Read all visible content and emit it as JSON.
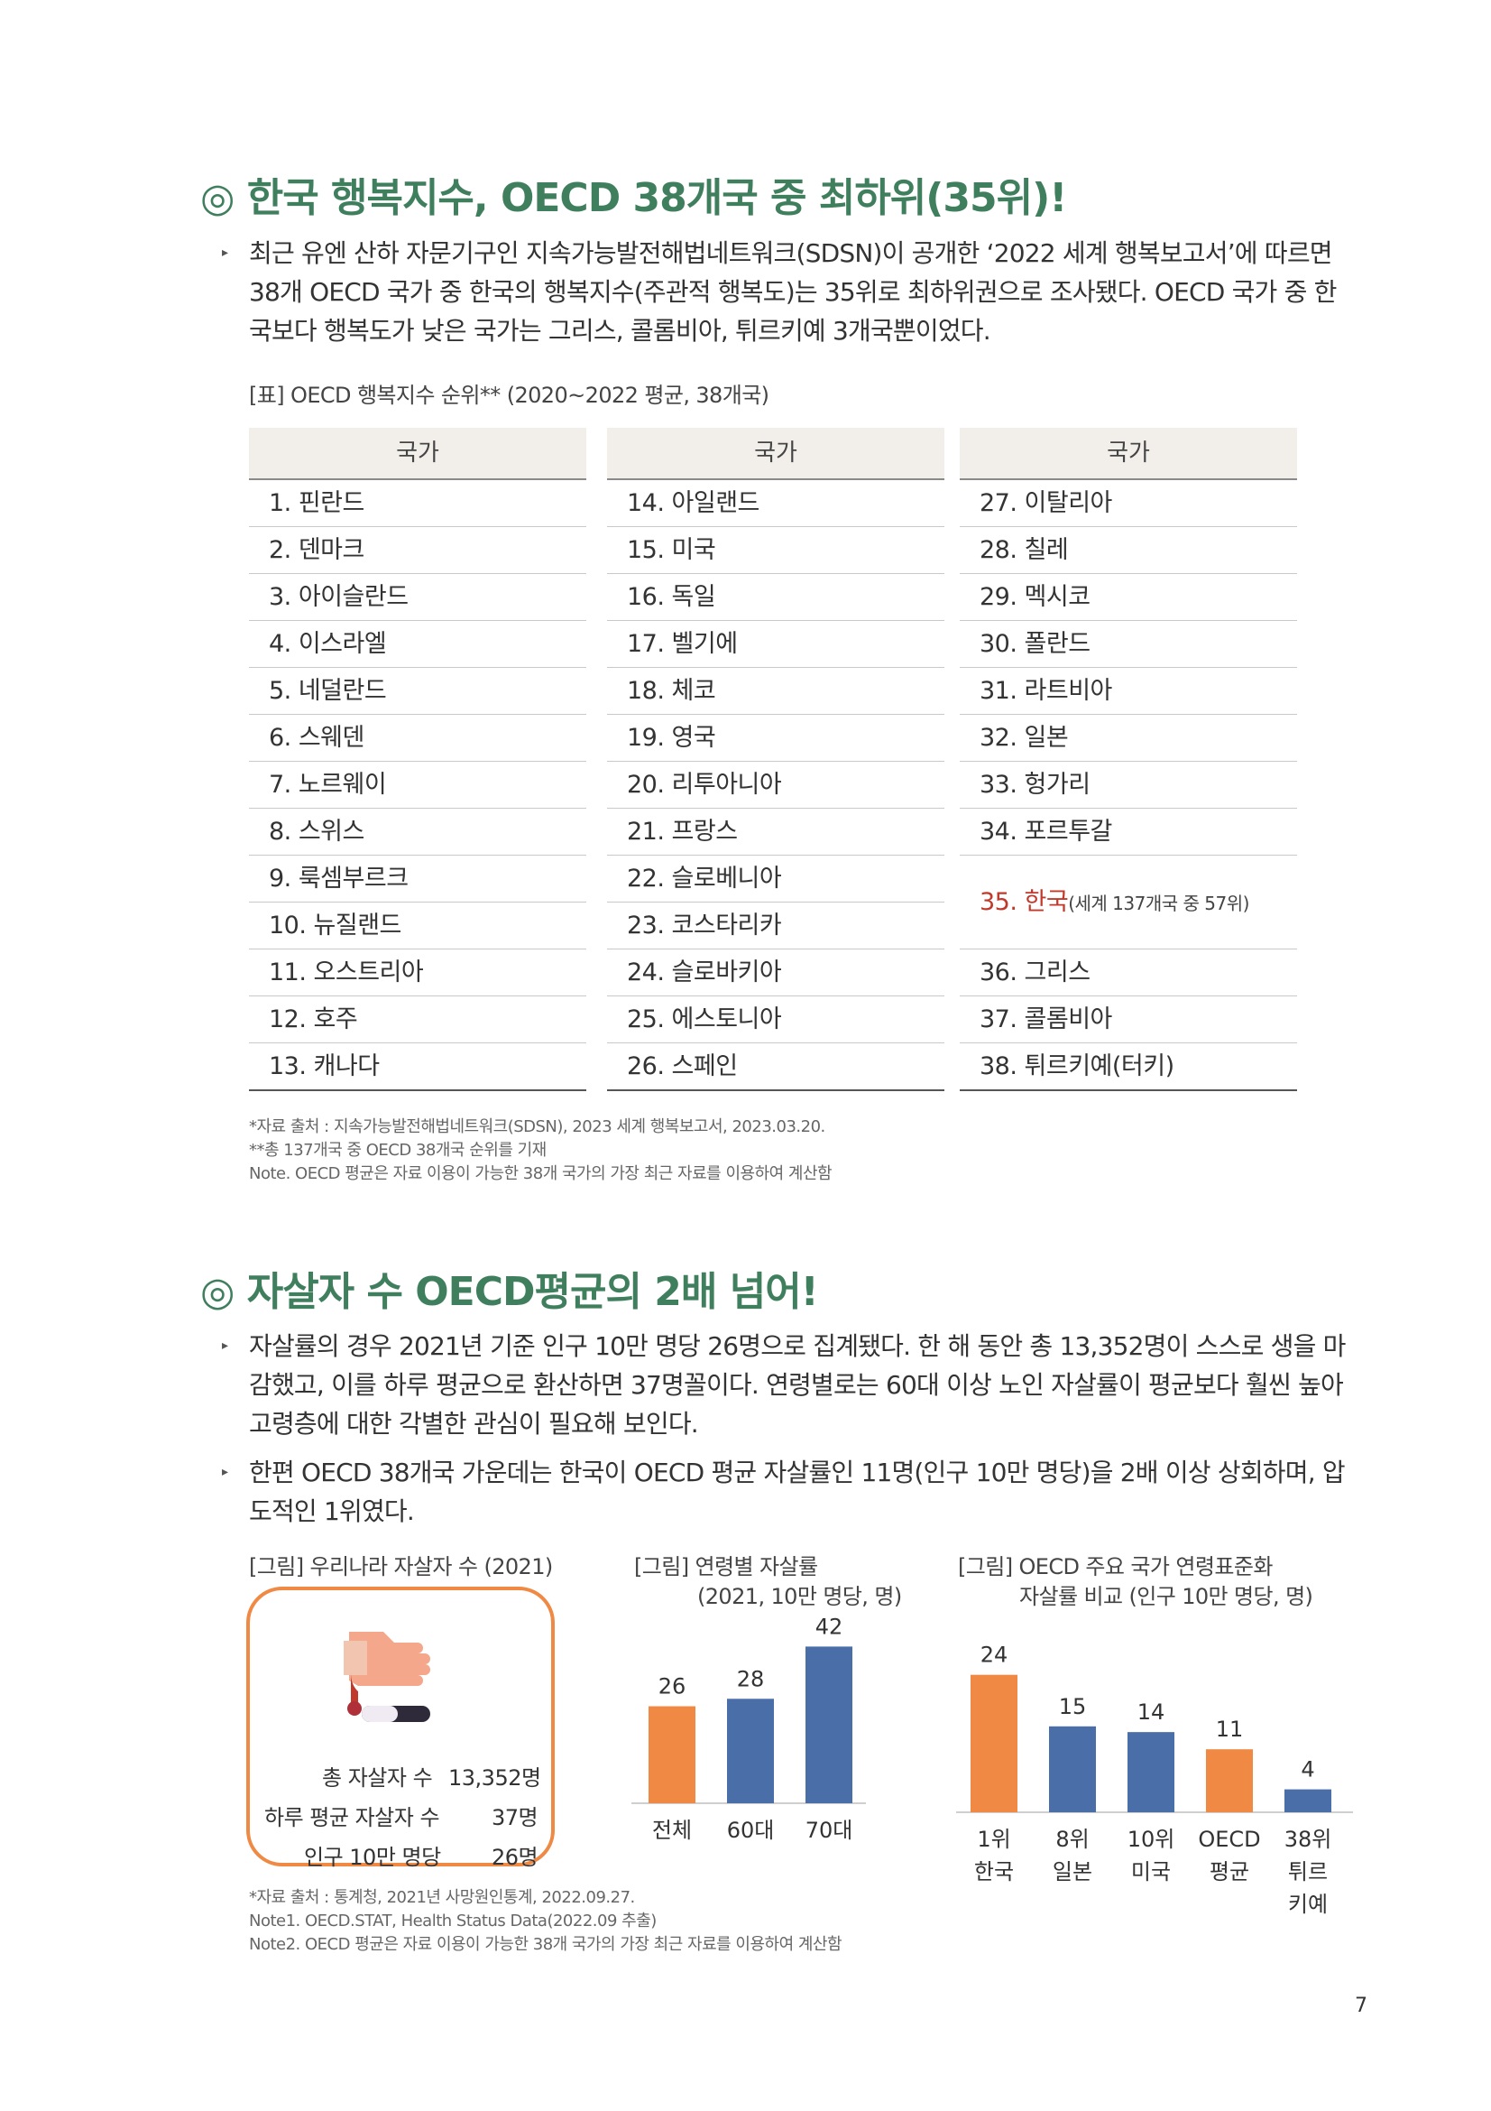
{
  "section1": {
    "title": "◎ 한국 행복지수, OECD 38개국 중 최하위(35위)!",
    "paragraph": "최근 유엔 산하 자문기구인 지속가능발전해법네트워크(SDSN)이 공개한 ‘2022 세계 행복보고서’에 따르면 38개 OECD 국가 중 한국의 행복지수(주관적 행복도)는 35위로 최하위권으로 조사됐다. OECD 국가 중 한국보다 행복도가 낮은 국가는 그리스, 콜롬비아, 튀르키예 3개국뿐이었다.",
    "table_caption": "[표] OECD 행복지수 순위** (2020~2022 평균, 38개국)",
    "column_header": "국가",
    "col1": [
      "1. 핀란드",
      "2. 덴마크",
      "3. 아이슬란드",
      "4. 이스라엘",
      "5. 네덜란드",
      "6. 스웨덴",
      "7. 노르웨이",
      "8. 스위스",
      "9. 룩셈부르크",
      "10. 뉴질랜드",
      "11. 오스트리아",
      "12. 호주",
      "13. 캐나다"
    ],
    "col2": [
      "14. 아일랜드",
      "15. 미국",
      "16. 독일",
      "17. 벨기에",
      "18. 체코",
      "19. 영국",
      "20. 리투아니아",
      "21. 프랑스",
      "22. 슬로베니아",
      "23. 코스타리카",
      "24. 슬로바키아",
      "25. 에스토니아",
      "26. 스페인"
    ],
    "col3_top": [
      "27. 이탈리아",
      "28. 칠레",
      "29. 멕시코",
      "30. 폴란드",
      "31. 라트비아",
      "32. 일본",
      "33. 헝가리",
      "34. 포르투갈"
    ],
    "korea_label": "35. 한국",
    "korea_note": "(세계 137개국 중 57위)",
    "col3_bottom": [
      "36. 그리스",
      "37. 콜롬비아",
      "38. 튀르키예(터키)"
    ],
    "notes": [
      "*자료 출처 : 지속가능발전해법네트워크(SDSN), 2023 세계 행복보고서, 2023.03.20.",
      "**총 137개국 중 OECD 38개국 순위를 기재",
      "Note. OECD 평균은 자료 이용이 가능한 38개 국가의 가장 최근 자료를 이용하여 계산함"
    ]
  },
  "section2": {
    "title": "◎ 자살자 수 OECD평균의 2배 넘어!",
    "paragraph1": "자살률의 경우 2021년 기준 인구 10만 명당 26명으로 집계됐다. 한 해 동안 총 13,352명이 스스로 생을 마감했고, 이를 하루 평균으로 환산하면 37명꼴이다. 연령별로는 60대 이상 노인 자살률이 평균보다 훨씬 높아 고령층에 대한 각별한 관심이 필요해 보인다.",
    "paragraph2": "한편 OECD 38개국 가운데는 한국이 OECD 평균 자살률인 11명(인구 10만 명당)을 2배 이상 상회하며, 압도적인 1위였다.",
    "fig1_caption": "[그림] 우리나라 자살자 수 (2021)",
    "fig1_rows": [
      {
        "label": "총 자살자 수",
        "value": "13,352명"
      },
      {
        "label": "하루 평균 자살자 수",
        "value": "37명"
      },
      {
        "label": "인구 10만 명당",
        "value": "26명"
      }
    ],
    "fig2_caption_line1": "[그림] 연령별 자살률",
    "fig2_caption_line2": "(2021, 10만 명당, 명)",
    "fig3_caption_line1": "[그림] OECD 주요 국가 연령표준화",
    "fig3_caption_line2": "자살률 비교 (인구 10만 명당, 명)",
    "notes": [
      "*자료 출처 : 통계청, 2021년 사망원인통계, 2022.09.27.",
      "Note1. OECD.STAT, Health Status Data(2022.09 추출)",
      "Note2. OECD 평균은 자료 이용이 가능한 38개 국가의 가장 최근 자료를 이용하여 계산함"
    ]
  },
  "page_number": "7",
  "colors": {
    "title_green": "#3f7f5e",
    "orange": "#ef8944",
    "blue": "#4a6ea8",
    "korea_red": "#c0392b"
  },
  "chart_data": [
    {
      "type": "bar",
      "categories": [
        "전체",
        "60대",
        "70대"
      ],
      "values": [
        26,
        28,
        42
      ],
      "colors": [
        "#ef8944",
        "#4a6ea8",
        "#4a6ea8"
      ],
      "ylim": [
        0,
        45
      ]
    },
    {
      "type": "bar",
      "categories": [
        [
          "1위",
          "한국"
        ],
        [
          "8위",
          "일본"
        ],
        [
          "10위",
          "미국"
        ],
        [
          "OECD",
          "평균"
        ],
        [
          "38위",
          "튀르",
          "키예"
        ]
      ],
      "values": [
        24,
        15,
        14,
        11,
        4
      ],
      "colors": [
        "#ef8944",
        "#4a6ea8",
        "#4a6ea8",
        "#ef8944",
        "#4a6ea8"
      ],
      "ylim": [
        0,
        26
      ]
    }
  ]
}
